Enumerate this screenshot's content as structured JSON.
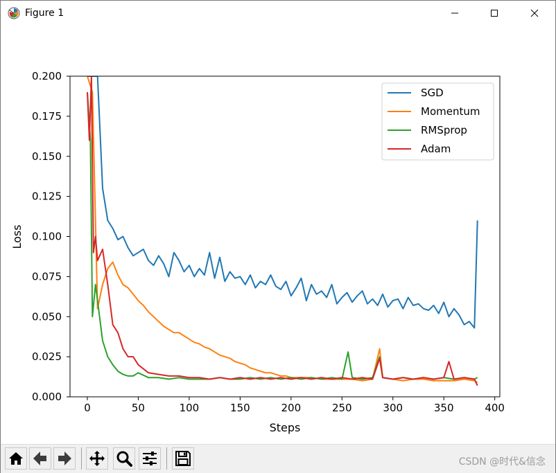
{
  "window": {
    "title": "Figure 1"
  },
  "toolbar": {
    "buttons": [
      {
        "name": "home-icon"
      },
      {
        "name": "back-icon"
      },
      {
        "name": "forward-icon"
      },
      {
        "name": "pan-icon"
      },
      {
        "name": "zoom-icon"
      },
      {
        "name": "configure-subplots-icon"
      },
      {
        "name": "save-icon"
      }
    ],
    "watermark": "CSDN @时代&信念"
  },
  "chart_data": {
    "type": "line",
    "title": "",
    "xlabel": "Steps",
    "ylabel": "Loss",
    "xlim": [
      -17,
      405
    ],
    "ylim": [
      0.0,
      0.2
    ],
    "xticks": [
      "0",
      "50",
      "100",
      "150",
      "200",
      "250",
      "300",
      "350",
      "400"
    ],
    "yticks": [
      "0.000",
      "0.025",
      "0.050",
      "0.075",
      "0.100",
      "0.125",
      "0.150",
      "0.175",
      "0.200"
    ],
    "grid": false,
    "legend_position": "top-right",
    "colors": {
      "SGD": "#1f77b4",
      "Momentum": "#ff7f0e",
      "RMSprop": "#2ca02c",
      "Adam": "#d62728"
    },
    "series": [
      {
        "name": "SGD",
        "x": [
          0,
          5,
          10,
          15,
          20,
          25,
          30,
          35,
          40,
          45,
          50,
          55,
          60,
          65,
          70,
          75,
          80,
          85,
          90,
          95,
          100,
          105,
          110,
          115,
          120,
          125,
          130,
          135,
          140,
          145,
          150,
          155,
          160,
          165,
          170,
          175,
          180,
          185,
          190,
          195,
          200,
          205,
          210,
          215,
          220,
          225,
          230,
          235,
          240,
          245,
          250,
          255,
          260,
          265,
          270,
          275,
          280,
          285,
          290,
          295,
          300,
          305,
          310,
          315,
          320,
          325,
          330,
          335,
          340,
          345,
          350,
          355,
          360,
          365,
          370,
          375,
          380,
          383
        ],
        "y": [
          0.2,
          0.2,
          0.2,
          0.13,
          0.11,
          0.105,
          0.098,
          0.1,
          0.093,
          0.088,
          0.09,
          0.092,
          0.085,
          0.082,
          0.088,
          0.083,
          0.075,
          0.09,
          0.085,
          0.078,
          0.082,
          0.075,
          0.08,
          0.076,
          0.09,
          0.074,
          0.087,
          0.072,
          0.078,
          0.074,
          0.075,
          0.07,
          0.076,
          0.068,
          0.072,
          0.07,
          0.076,
          0.069,
          0.067,
          0.072,
          0.063,
          0.068,
          0.074,
          0.06,
          0.07,
          0.064,
          0.066,
          0.062,
          0.07,
          0.058,
          0.062,
          0.065,
          0.059,
          0.063,
          0.066,
          0.058,
          0.061,
          0.057,
          0.064,
          0.056,
          0.06,
          0.061,
          0.055,
          0.062,
          0.057,
          0.058,
          0.055,
          0.054,
          0.057,
          0.052,
          0.059,
          0.05,
          0.055,
          0.051,
          0.045,
          0.047,
          0.043,
          0.11
        ]
      },
      {
        "name": "Momentum",
        "x": [
          0,
          5,
          10,
          15,
          20,
          25,
          30,
          35,
          40,
          45,
          50,
          55,
          60,
          65,
          70,
          75,
          80,
          85,
          90,
          95,
          100,
          105,
          110,
          115,
          120,
          125,
          130,
          135,
          140,
          145,
          150,
          155,
          160,
          165,
          170,
          175,
          180,
          185,
          190,
          195,
          200,
          210,
          220,
          230,
          240,
          250,
          260,
          270,
          280,
          287,
          290,
          300,
          310,
          320,
          330,
          340,
          350,
          360,
          370,
          380,
          383
        ],
        "y": [
          0.2,
          0.19,
          0.055,
          0.07,
          0.08,
          0.084,
          0.076,
          0.07,
          0.068,
          0.064,
          0.06,
          0.057,
          0.053,
          0.05,
          0.047,
          0.044,
          0.042,
          0.04,
          0.04,
          0.038,
          0.036,
          0.034,
          0.033,
          0.031,
          0.03,
          0.028,
          0.026,
          0.025,
          0.024,
          0.022,
          0.021,
          0.02,
          0.018,
          0.017,
          0.016,
          0.015,
          0.015,
          0.014,
          0.013,
          0.013,
          0.012,
          0.012,
          0.012,
          0.011,
          0.011,
          0.011,
          0.011,
          0.01,
          0.011,
          0.03,
          0.012,
          0.011,
          0.01,
          0.011,
          0.011,
          0.01,
          0.01,
          0.01,
          0.011,
          0.01,
          0.009
        ]
      },
      {
        "name": "RMSprop",
        "x": [
          0,
          3,
          5,
          8,
          10,
          15,
          20,
          25,
          30,
          35,
          40,
          45,
          50,
          60,
          70,
          80,
          90,
          100,
          110,
          120,
          130,
          140,
          150,
          160,
          170,
          180,
          190,
          200,
          210,
          220,
          230,
          240,
          250,
          256,
          260,
          270,
          280,
          287,
          290,
          300,
          310,
          320,
          330,
          340,
          350,
          360,
          370,
          380,
          383
        ],
        "y": [
          0.19,
          0.16,
          0.05,
          0.07,
          0.06,
          0.035,
          0.025,
          0.02,
          0.016,
          0.014,
          0.013,
          0.013,
          0.015,
          0.012,
          0.012,
          0.011,
          0.012,
          0.011,
          0.011,
          0.011,
          0.012,
          0.011,
          0.011,
          0.012,
          0.011,
          0.012,
          0.011,
          0.012,
          0.011,
          0.012,
          0.011,
          0.012,
          0.011,
          0.028,
          0.012,
          0.011,
          0.012,
          0.025,
          0.012,
          0.011,
          0.012,
          0.011,
          0.012,
          0.011,
          0.012,
          0.011,
          0.012,
          0.011,
          0.012
        ]
      },
      {
        "name": "Adam",
        "x": [
          0,
          2,
          4,
          6,
          8,
          10,
          15,
          20,
          25,
          30,
          35,
          40,
          45,
          50,
          60,
          70,
          80,
          90,
          100,
          110,
          120,
          130,
          140,
          150,
          160,
          170,
          180,
          190,
          200,
          210,
          220,
          230,
          240,
          250,
          260,
          270,
          280,
          287,
          290,
          300,
          310,
          320,
          330,
          340,
          350,
          355,
          360,
          370,
          380,
          383
        ],
        "y": [
          0.19,
          0.16,
          0.2,
          0.09,
          0.1,
          0.085,
          0.092,
          0.07,
          0.045,
          0.04,
          0.03,
          0.025,
          0.025,
          0.02,
          0.015,
          0.014,
          0.013,
          0.013,
          0.012,
          0.012,
          0.011,
          0.012,
          0.011,
          0.012,
          0.011,
          0.012,
          0.011,
          0.012,
          0.011,
          0.012,
          0.011,
          0.012,
          0.011,
          0.012,
          0.011,
          0.012,
          0.011,
          0.024,
          0.012,
          0.011,
          0.012,
          0.011,
          0.012,
          0.011,
          0.012,
          0.022,
          0.011,
          0.012,
          0.011,
          0.007
        ]
      }
    ]
  }
}
